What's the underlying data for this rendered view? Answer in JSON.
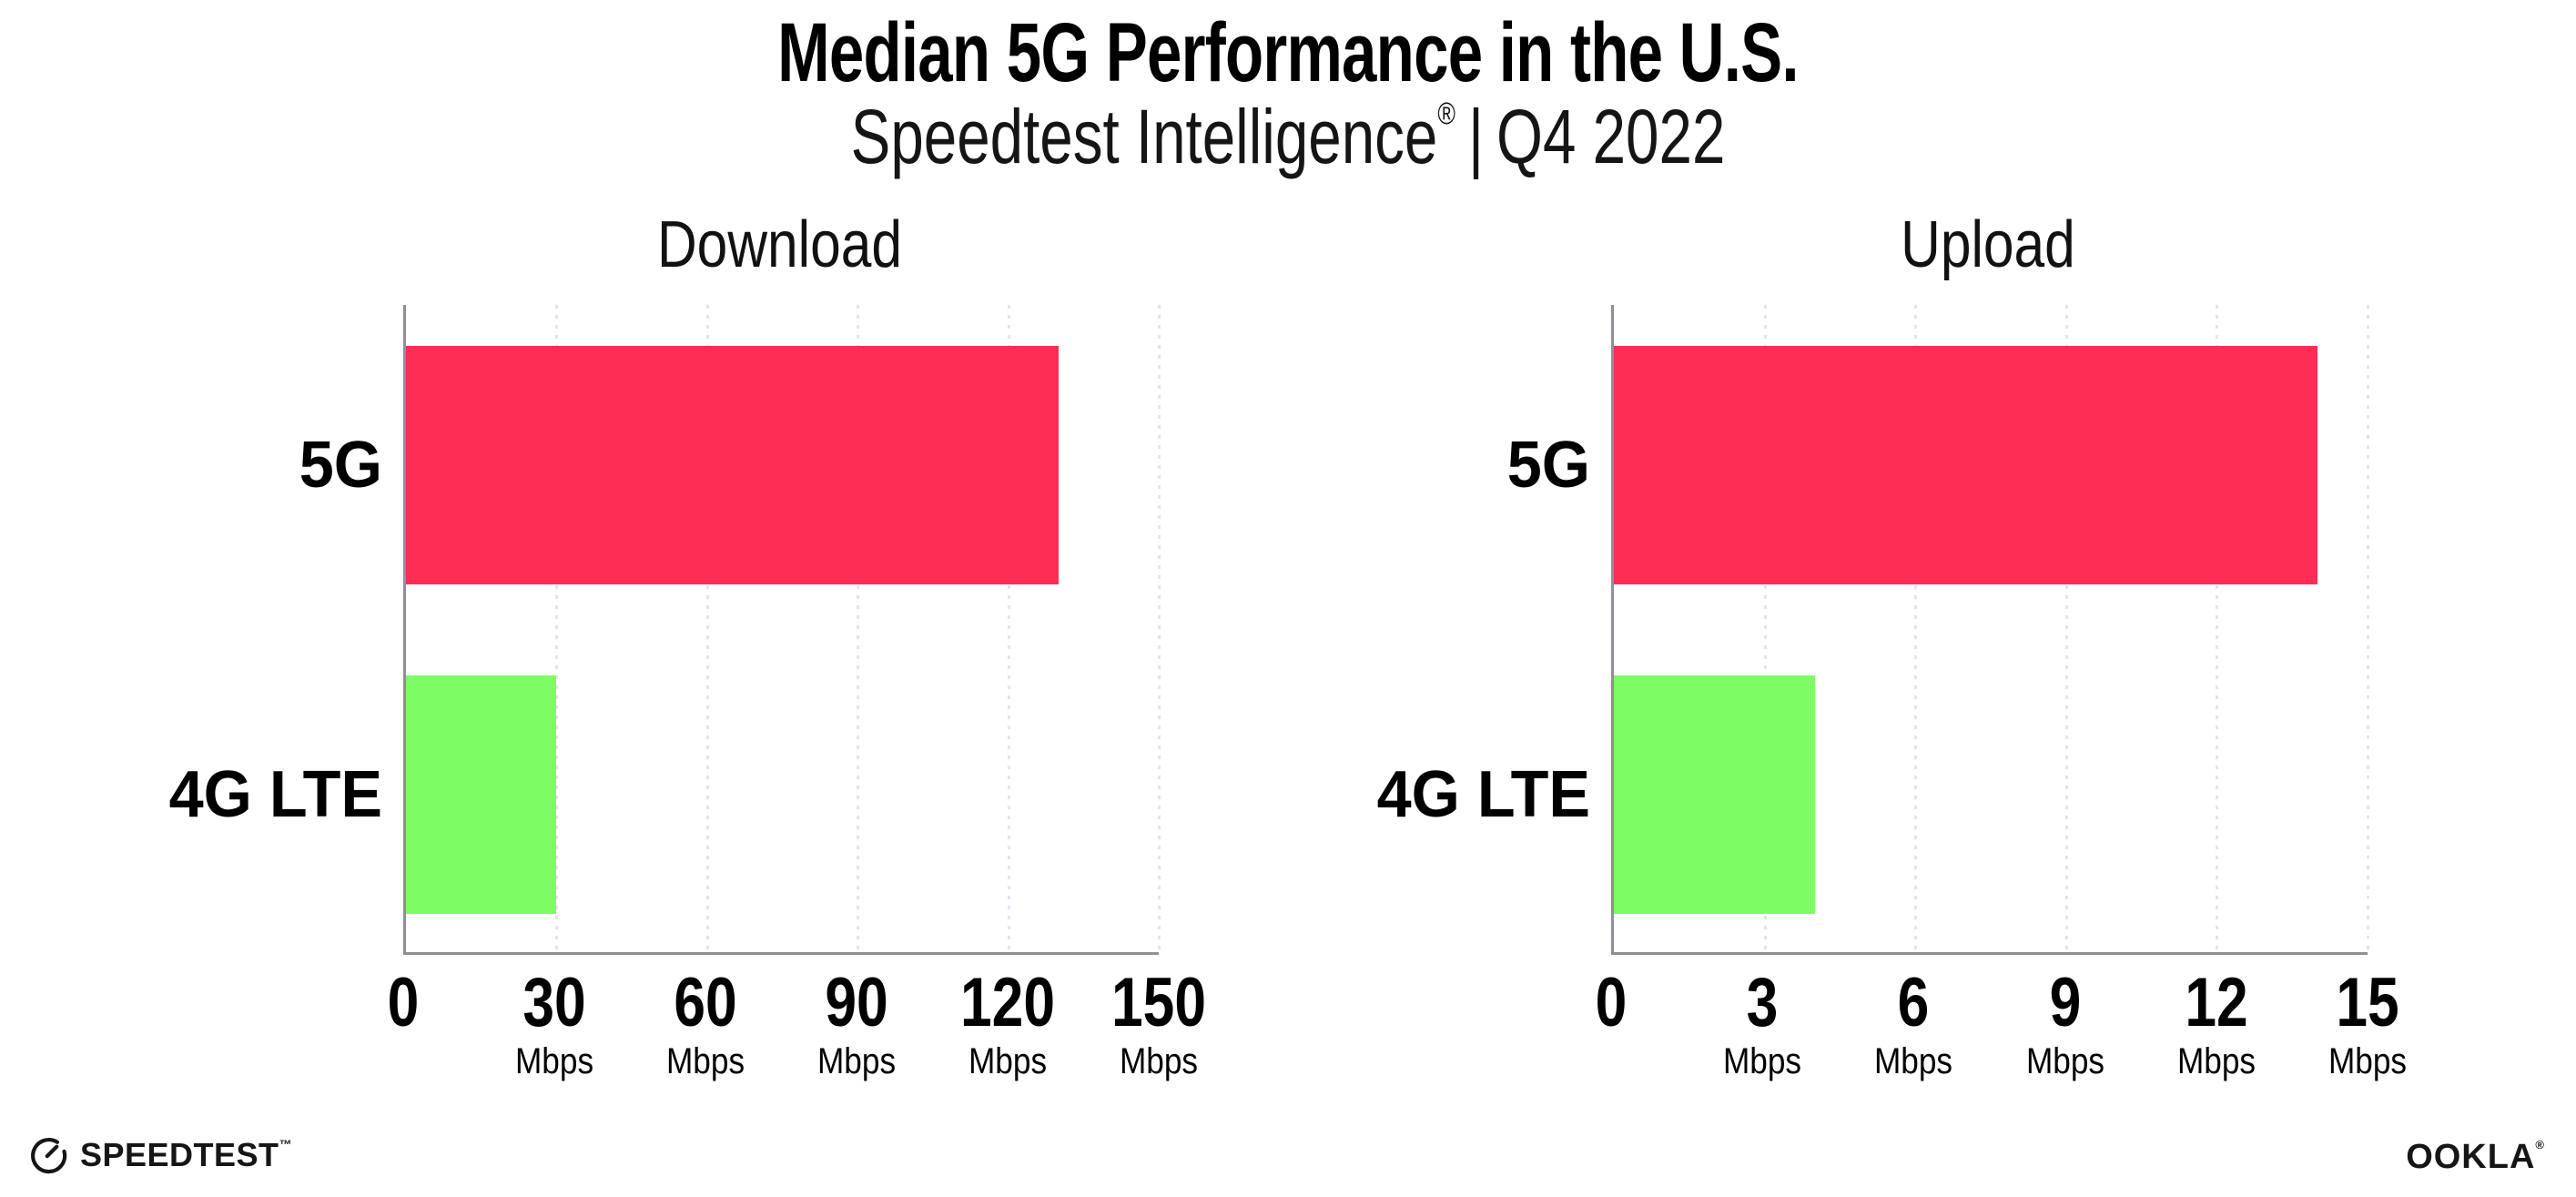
{
  "header": {
    "title": "Median 5G Performance in the U.S.",
    "subtitle": "Speedtest Intelligence",
    "subtitle_reg": "®",
    "subtitle_separator": "|",
    "subtitle_period": "Q4 2022"
  },
  "chart_data": [
    {
      "type": "bar",
      "orientation": "horizontal",
      "title": "Download",
      "categories": [
        "5G",
        "4G LTE"
      ],
      "values": [
        130,
        30
      ],
      "unit": "Mbps",
      "xlim": [
        0,
        150
      ],
      "ticks": [
        0,
        30,
        60,
        90,
        120,
        150
      ],
      "bar_colors": [
        "#FD2D55",
        "#7EFC64"
      ],
      "grid": "dotted-vertical",
      "grid_color": "#E4E4EE",
      "axis_color": "#8F8F97",
      "legend": "none"
    },
    {
      "type": "bar",
      "orientation": "horizontal",
      "title": "Upload",
      "categories": [
        "5G",
        "4G LTE"
      ],
      "values": [
        14,
        4
      ],
      "unit": "Mbps",
      "xlim": [
        0,
        15
      ],
      "ticks": [
        0,
        3,
        6,
        9,
        12,
        15
      ],
      "bar_colors": [
        "#FD2D55",
        "#7EFC64"
      ],
      "grid": "dotted-vertical",
      "grid_color": "#E4E4EE",
      "axis_color": "#8F8F97",
      "legend": "none"
    }
  ],
  "footer": {
    "speedtest_label": "SPEEDTEST",
    "speedtest_tm": "™",
    "ookla_label": "OOKLA",
    "ookla_reg": "®"
  }
}
